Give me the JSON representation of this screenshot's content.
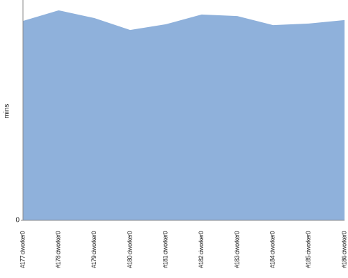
{
  "chart_data": {
    "type": "area",
    "ylabel": "mins",
    "categories": [
      "#177 ciworker0",
      "#178 ciworker0",
      "#179 ciworker0",
      "#180 ciworker0",
      "#181 ciworker0",
      "#182 ciworker0",
      "#183 ciworker0",
      "#184 ciworker0",
      "#185 ciworker0",
      "#186 ciworker0"
    ],
    "values": [
      90.5,
      95.3,
      91.8,
      86.4,
      89.0,
      93.4,
      92.7,
      88.6,
      89.3,
      90.9
    ],
    "color": "#8fb1db",
    "ylim": [
      0,
      100
    ],
    "yticks": [
      0
    ]
  }
}
